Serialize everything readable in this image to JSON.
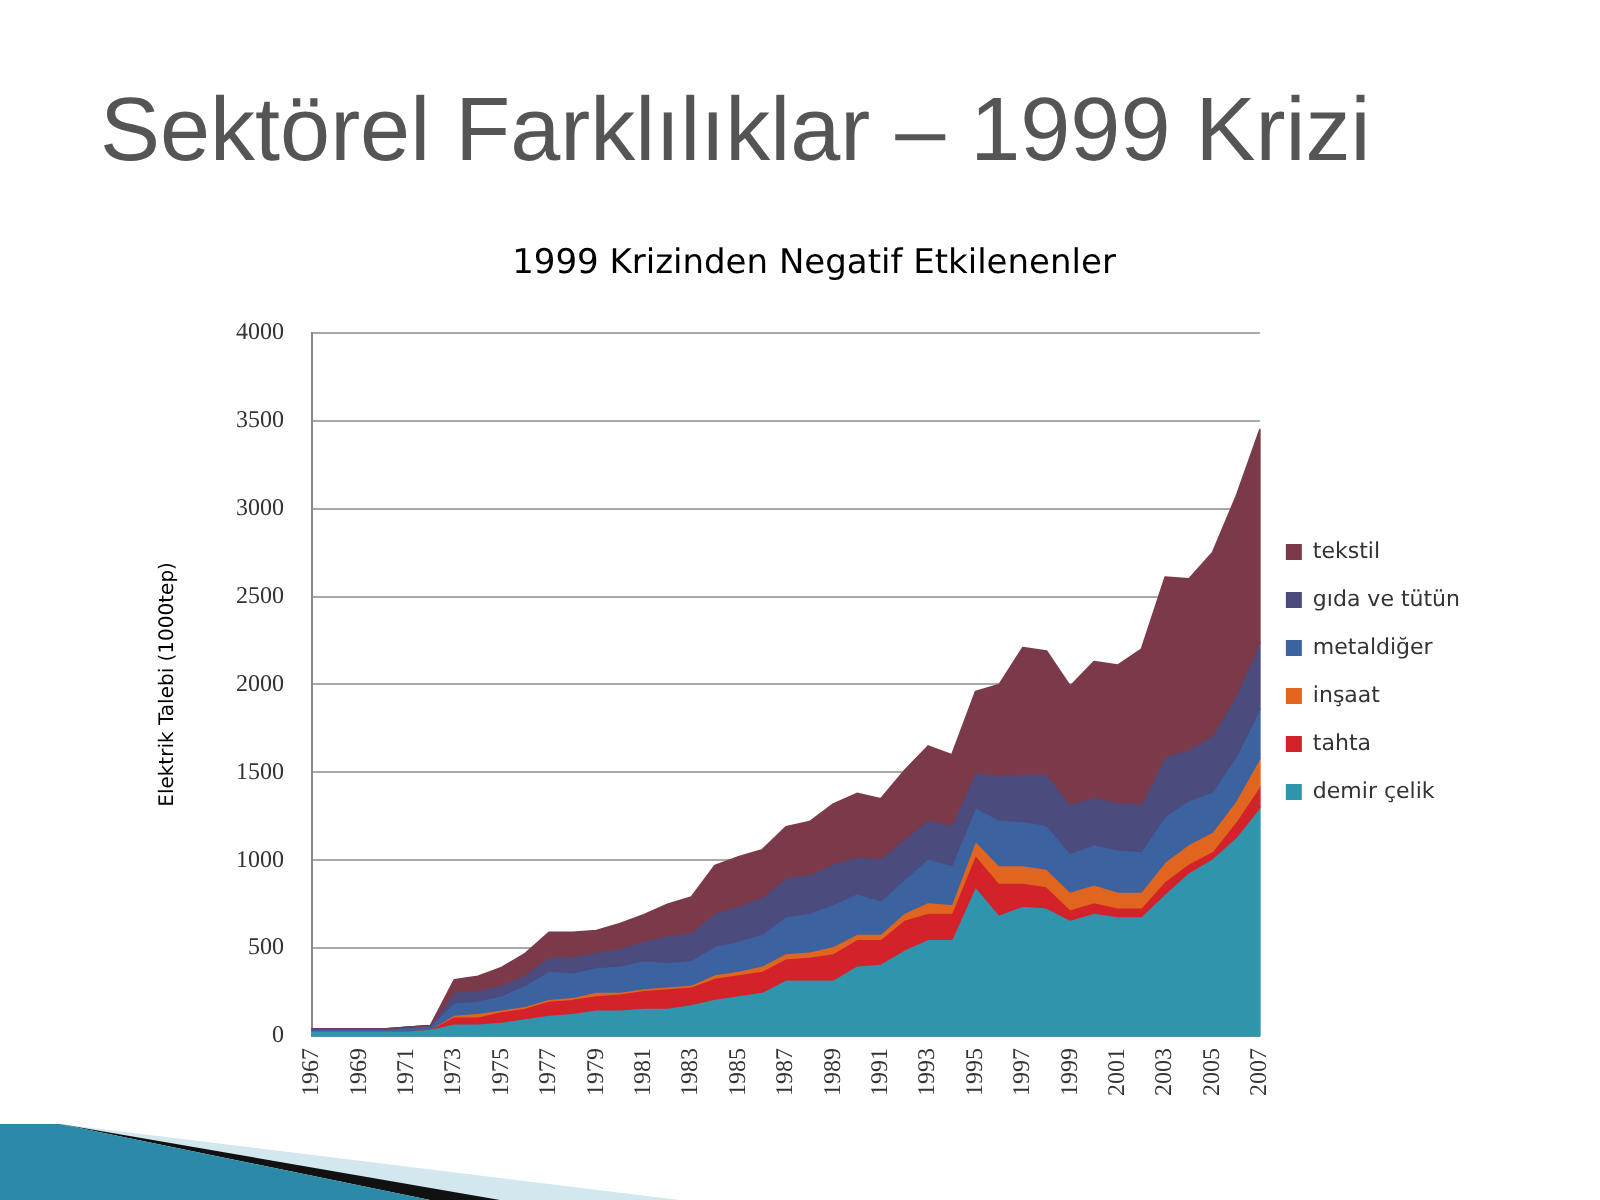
{
  "chart_data": {
    "type": "area",
    "title": "Sektörel Farklılıklar – 1999 Krizi",
    "subtitle": "1999 Krizinden Negatif Etkilenenler",
    "ylabel": "Elektrik Talebi (1000tep)",
    "categories": [
      "1967",
      null,
      "1969",
      null,
      "1971",
      null,
      "1973",
      null,
      "1975",
      null,
      "1977",
      null,
      "1979",
      null,
      "1981",
      null,
      "1983",
      null,
      "1985",
      null,
      "1987",
      null,
      "1989",
      null,
      "1991",
      null,
      "1993",
      null,
      "1995",
      null,
      "1997",
      null,
      "1999",
      null,
      "2001",
      null,
      "2003",
      null,
      "2005",
      null,
      "2007"
    ],
    "series": [
      {
        "name": "demir çelik",
        "color": "#3194ad",
        "values": [
          30,
          30,
          30,
          30,
          30,
          40,
          70,
          70,
          80,
          100,
          120,
          130,
          150,
          150,
          160,
          160,
          180,
          210,
          230,
          250,
          320,
          320,
          320,
          400,
          410,
          490,
          550,
          550,
          850,
          690,
          740,
          730,
          660,
          700,
          680,
          680,
          810,
          930,
          1010,
          1130,
          1300
        ]
      },
      {
        "name": "tahta",
        "color": "#d3222a",
        "values": [
          0,
          0,
          0,
          0,
          0,
          0,
          40,
          40,
          60,
          60,
          80,
          80,
          80,
          90,
          100,
          110,
          100,
          120,
          120,
          120,
          120,
          130,
          150,
          150,
          140,
          170,
          150,
          150,
          180,
          180,
          130,
          120,
          60,
          60,
          50,
          50,
          70,
          50,
          40,
          90,
          120
        ]
      },
      {
        "name": "inşaat",
        "color": "#e0661f",
        "values": [
          0,
          0,
          0,
          0,
          0,
          0,
          10,
          20,
          10,
          10,
          10,
          10,
          20,
          10,
          10,
          10,
          10,
          20,
          20,
          30,
          30,
          30,
          40,
          30,
          30,
          40,
          60,
          50,
          80,
          100,
          100,
          100,
          100,
          100,
          90,
          90,
          110,
          110,
          110,
          120,
          160
        ]
      },
      {
        "name": "metaldiğer",
        "color": "#3d62a0",
        "values": [
          10,
          10,
          10,
          10,
          20,
          20,
          70,
          70,
          80,
          120,
          160,
          140,
          140,
          150,
          160,
          140,
          140,
          160,
          170,
          180,
          210,
          220,
          240,
          230,
          190,
          190,
          250,
          220,
          190,
          260,
          250,
          250,
          220,
          230,
          240,
          230,
          260,
          250,
          230,
          250,
          280
        ]
      },
      {
        "name": "gıda ve tütün",
        "color": "#4b4b7d",
        "values": [
          0,
          0,
          0,
          0,
          0,
          0,
          60,
          60,
          60,
          60,
          80,
          90,
          90,
          100,
          110,
          150,
          160,
          190,
          200,
          210,
          220,
          220,
          230,
          210,
          240,
          230,
          220,
          230,
          200,
          250,
          270,
          290,
          280,
          270,
          270,
          270,
          340,
          290,
          320,
          350,
          380
        ]
      },
      {
        "name": "tekstil",
        "color": "#7b3a4a",
        "values": [
          0,
          0,
          0,
          0,
          0,
          0,
          70,
          80,
          100,
          120,
          140,
          140,
          120,
          140,
          150,
          180,
          200,
          270,
          280,
          270,
          290,
          300,
          340,
          360,
          340,
          390,
          420,
          400,
          460,
          520,
          720,
          700,
          670,
          770,
          780,
          880,
          1020,
          970,
          1040,
          1130,
          1210
        ]
      }
    ],
    "stacked": true,
    "ylim": [
      0,
      4000
    ],
    "yticks": [
      0,
      500,
      1000,
      1500,
      2000,
      2500,
      3000,
      3500,
      4000
    ],
    "grid": "y",
    "legend": "right"
  }
}
